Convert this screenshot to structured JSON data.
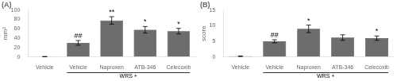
{
  "chart_data": [
    {
      "type": "bar",
      "title": "(A)",
      "y_label": "mm²",
      "categories": [
        "Vehicle",
        "Vehicle",
        "Naproxen",
        "ATB-346",
        "Celecoxib"
      ],
      "values": [
        0.5,
        30,
        78,
        58,
        55
      ],
      "errors": [
        0.3,
        5,
        8,
        7,
        6
      ],
      "color": "#6d6d6d",
      "ylim": [
        0,
        100
      ],
      "yticks": [
        0,
        20,
        40,
        60,
        80,
        100
      ],
      "grid": false,
      "annotations": [
        {
          "bar": 1,
          "text": "##"
        },
        {
          "bar": 2,
          "text": "**"
        },
        {
          "bar": 3,
          "text": "*"
        },
        {
          "bar": 4,
          "text": "*"
        },
        {
          "bars": [
            1,
            2,
            3,
            4
          ],
          "text": "WRS +"
        }
      ]
    },
    {
      "type": "bar",
      "title": "(B)",
      "y_label": "score",
      "categories": [
        "Vehicle",
        "Vehicle",
        "Naproxen",
        "ATB-346",
        "Celecoxib"
      ],
      "values": [
        0.2,
        5,
        9,
        6.2,
        6.0
      ],
      "errors": [
        0.1,
        0.5,
        1.2,
        0.9,
        0.7
      ],
      "color": "#6d6d6d",
      "ylim": [
        0,
        15
      ],
      "yticks": [
        0,
        5,
        10,
        15
      ],
      "grid": false,
      "annotations": [
        {
          "bar": 1,
          "text": "##"
        },
        {
          "bar": 2,
          "text": "*"
        },
        {
          "bar": 4,
          "text": "*"
        },
        {
          "bars": [
            1,
            2,
            3,
            4
          ],
          "text": "WRS +"
        }
      ]
    }
  ]
}
